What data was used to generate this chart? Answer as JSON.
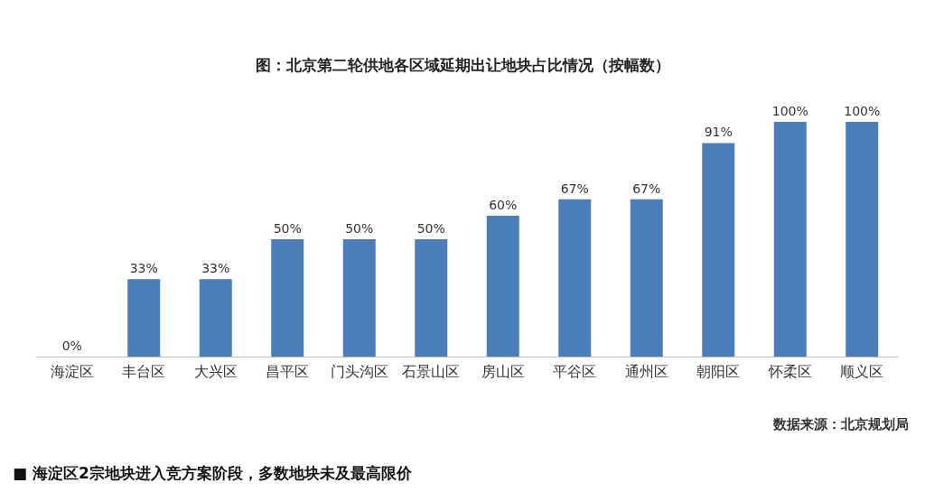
{
  "chart_data": {
    "type": "bar",
    "title": "图：北京第二轮供地各区域延期出让地块占比情况（按幅数）",
    "categories": [
      "海淀区",
      "丰台区",
      "大兴区",
      "昌平区",
      "门头沟区",
      "石景山区",
      "房山区",
      "平谷区",
      "通州区",
      "朝阳区",
      "怀柔区",
      "顺义区"
    ],
    "values": [
      0,
      33,
      33,
      50,
      50,
      50,
      60,
      67,
      67,
      91,
      100,
      100
    ],
    "value_labels": [
      "0%",
      "33%",
      "33%",
      "50%",
      "50%",
      "50%",
      "60%",
      "67%",
      "67%",
      "91%",
      "100%",
      "100%"
    ],
    "color": "#4a7ebb",
    "annotations": [
      "数据来源：北京规划局",
      "■ 海淀区2宗地块进入竞方案阶段，多数地块未及最高限价"
    ]
  }
}
